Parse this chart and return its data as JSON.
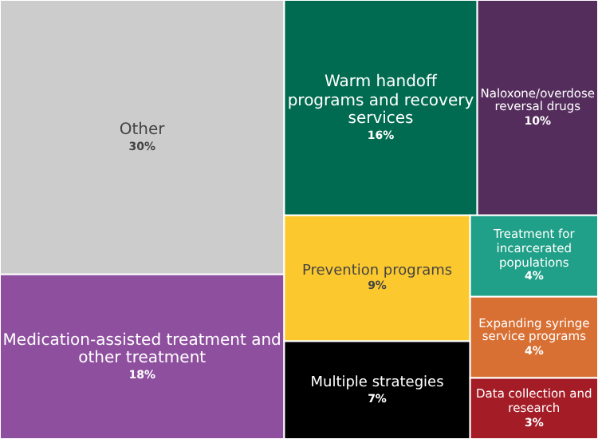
{
  "chart_data": {
    "type": "other",
    "categories": [
      "Other",
      "Medication-assisted treatment and other treatment",
      "Warm handoff programs and recovery services",
      "Naloxone/overdose reversal drugs",
      "Prevention programs",
      "Multiple strategies",
      "Treatment for incarcerated populations",
      "Expanding syringe service programs",
      "Data collection and research"
    ],
    "values": [
      30,
      18,
      16,
      10,
      9,
      7,
      4,
      4,
      3
    ],
    "colors": [
      "#cccccc",
      "#8e4f9e",
      "#006b50",
      "#542d5c",
      "#fbc82e",
      "#000000",
      "#20a088",
      "#d86f33",
      "#a31c26"
    ],
    "value_labels": [
      "30%",
      "18%",
      "16%",
      "10%",
      "9%",
      "7%",
      "4%",
      "4%",
      "3%"
    ]
  }
}
